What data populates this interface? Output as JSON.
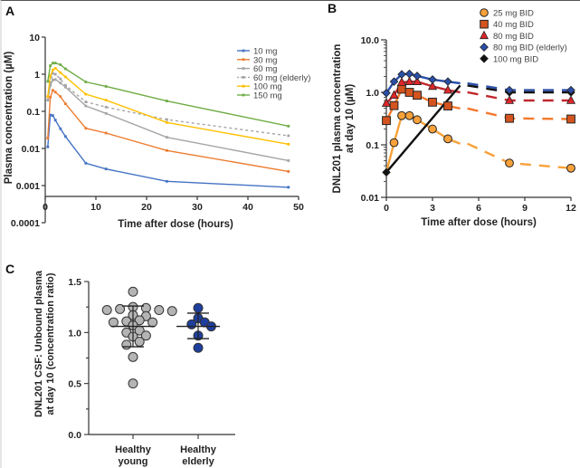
{
  "figure": {
    "panels": [
      "A",
      "B",
      "C"
    ]
  },
  "chart_data": [
    {
      "panel": "A",
      "type": "line",
      "title": "",
      "xlabel": "Time after dose (hours)",
      "ylabel": "Plasma concentration (µM)",
      "xscale": "linear",
      "yscale": "log",
      "xlim": [
        0,
        50
      ],
      "ylim": [
        0.0001,
        10
      ],
      "xticks": [
        "0",
        "10",
        "20",
        "30",
        "40",
        "50"
      ],
      "xtick_values": [
        0,
        10,
        20,
        30,
        40,
        50
      ],
      "yticks": [
        "10",
        "1",
        "0.1",
        "0.01",
        "0.001",
        "0.0001"
      ],
      "ytick_values": [
        10,
        1,
        0.1,
        0.01,
        0.001,
        0.0001
      ],
      "legend_position": "top-right",
      "x": [
        0.5,
        1,
        1.5,
        2,
        3,
        4,
        8,
        12,
        24,
        48
      ],
      "series": [
        {
          "name": "10 mg",
          "color": "#4472c4",
          "dashed": false,
          "values": [
            0.011,
            0.08,
            0.077,
            0.058,
            0.034,
            0.021,
            0.004,
            0.0028,
            0.0013,
            0.0009
          ]
        },
        {
          "name": "30 mg",
          "color": "#ed7d31",
          "dashed": false,
          "values": [
            0.019,
            0.24,
            0.37,
            0.33,
            0.25,
            0.16,
            0.035,
            0.026,
            0.0088,
            0.0024
          ]
        },
        {
          "name": "60 mg",
          "color": "#a5a5a5",
          "dashed": false,
          "values": [
            0.2,
            0.5,
            0.7,
            0.72,
            0.58,
            0.45,
            0.14,
            0.088,
            0.02,
            0.0047
          ]
        },
        {
          "name": "60 mg (elderly)",
          "color": "#a5a5a5",
          "dashed": true,
          "values": [
            0.2,
            0.6,
            1.05,
            1.0,
            0.75,
            0.5,
            0.18,
            0.13,
            0.06,
            0.022
          ]
        },
        {
          "name": "100 mg",
          "color": "#ffc000",
          "dashed": false,
          "values": [
            0.25,
            0.9,
            1.3,
            1.45,
            1.1,
            0.85,
            0.29,
            0.2,
            0.05,
            0.013
          ]
        },
        {
          "name": "150 mg",
          "color": "#70ad47",
          "dashed": false,
          "values": [
            0.64,
            1.7,
            2.0,
            2.0,
            1.8,
            1.4,
            0.62,
            0.47,
            0.19,
            0.04
          ]
        }
      ]
    },
    {
      "panel": "B",
      "type": "line",
      "title": "",
      "xlabel": "Time after dose (hours)",
      "ylabel": [
        "DNL201 plasma concentration",
        "at day 10 (µM)"
      ],
      "xscale": "linear",
      "yscale": "log",
      "xlim": [
        0,
        12
      ],
      "ylim": [
        0.01,
        10
      ],
      "xticks": [
        "0",
        "3",
        "6",
        "9",
        "12"
      ],
      "xtick_values": [
        0,
        3,
        6,
        9,
        12
      ],
      "yticks": [
        "10.0",
        "1.0",
        "0.1",
        "0.01"
      ],
      "ytick_values": [
        10,
        1,
        0.1,
        0.01
      ],
      "legend_position": "top-right",
      "series": [
        {
          "name": "25 mg BID",
          "marker": "circle",
          "color": "#f7a13a",
          "line_color": "#f7a13a",
          "x": [
            0,
            0.5,
            1,
            1.5,
            2,
            3,
            4,
            8,
            12
          ],
          "values": [
            0.03,
            0.11,
            0.36,
            0.36,
            0.3,
            0.2,
            0.13,
            0.045,
            0.036
          ],
          "marker_skip_first": true
        },
        {
          "name": "40 mg BID",
          "marker": "square",
          "color": "#d4541f",
          "line_color": "#f47a2e",
          "x": [
            0,
            0.5,
            1,
            1.5,
            2,
            3,
            4,
            8,
            12
          ],
          "values": [
            0.29,
            0.56,
            1.15,
            1.0,
            0.88,
            0.65,
            0.55,
            0.32,
            0.31
          ]
        },
        {
          "name": "80 mg BID",
          "marker": "triangle",
          "color": "#e0262b",
          "line_color": "#c0282e",
          "x": [
            0,
            0.5,
            1,
            1.5,
            2,
            3,
            4,
            8,
            12
          ],
          "values": [
            0.62,
            0.88,
            1.55,
            1.6,
            1.6,
            1.3,
            1.1,
            0.7,
            0.7
          ]
        },
        {
          "name": "80 mg BID (elderly)",
          "marker": "diamond",
          "color": "#2a4fa8",
          "line_color": "#2a4fa8",
          "x": [
            0,
            0.5,
            1,
            1.5,
            2,
            3,
            4,
            8,
            12
          ],
          "values": [
            0.97,
            1.6,
            2.2,
            2.25,
            2.05,
            1.75,
            1.6,
            1.1,
            1.1
          ]
        },
        {
          "name": "100 mg BID",
          "marker": "diamond",
          "color": "#111111",
          "line_color": "#111111",
          "x": [
            0,
            4.8,
            8,
            12
          ],
          "values": [
            0.03,
            1.35,
            1.0,
            1.0
          ],
          "marker_indices": [
            0,
            2,
            3
          ]
        }
      ],
      "notes": "Solid lines 0-4.8 h, dashed lines from 4.8-12 h"
    },
    {
      "panel": "C",
      "type": "scatter",
      "title": "",
      "xlabel": "",
      "ylabel": [
        "DNL201 CSF: Unbound plasma",
        "at day 10 (concentration ratio)"
      ],
      "ylim": [
        0,
        1.5
      ],
      "yticks": [
        "0.0",
        "0.5",
        "1.0",
        "1.5"
      ],
      "ytick_values": [
        0,
        0.5,
        1.0,
        1.5
      ],
      "categories": [
        [
          "Healthy",
          "young"
        ],
        [
          "Healthy",
          "elderly"
        ]
      ],
      "groups": [
        {
          "name": "Healthy young",
          "color": "#b4b4b4",
          "values": [
            1.4,
            1.25,
            1.24,
            1.23,
            1.22,
            1.22,
            1.21,
            1.17,
            1.16,
            1.12,
            1.11,
            1.1,
            1.1,
            1.07,
            1.02,
            1.0,
            0.97,
            0.96,
            0.91,
            0.88,
            0.76,
            0.5
          ],
          "mean": 1.06,
          "sd_low": 0.86,
          "sd_high": 1.26
        },
        {
          "name": "Healthy elderly",
          "color": "#1f3f9e",
          "values": [
            1.24,
            1.14,
            1.1,
            1.08,
            1.06,
            0.97,
            0.85
          ],
          "mean": 1.06,
          "sd_low": 0.94,
          "sd_high": 1.19
        }
      ]
    }
  ]
}
